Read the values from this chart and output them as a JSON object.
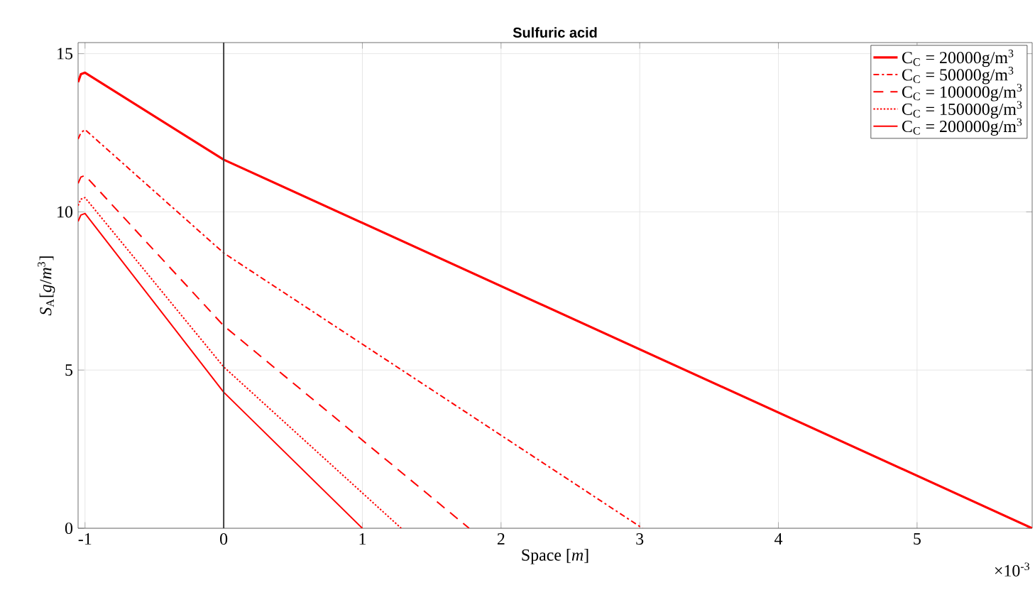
{
  "chart_data": {
    "type": "line",
    "title": "Sulfuric acid",
    "xlabel": "Space [*m*]",
    "ylabel": "*S*$_{A}$[*g*/*m*$^{3}$]",
    "series": [
      {
        "name": "C$_{C}$ = 20000g/m$^{3}$",
        "color": "#ff0000",
        "line_style": "solid",
        "x": [
          -1.05,
          -1.03,
          -1.0,
          0,
          5.83
        ],
        "values": [
          14.1,
          14.35,
          14.4,
          11.65,
          0
        ]
      },
      {
        "name": "C$_{C}$ = 50000g/m$^{3}$",
        "color": "#ff0000",
        "line_style": "dashdot",
        "x": [
          -1.05,
          -1.03,
          -1.0,
          0,
          3.02
        ],
        "values": [
          12.3,
          12.5,
          12.6,
          8.7,
          0
        ]
      },
      {
        "name": "C$_{C}$ = 100000g/m$^{3}$",
        "color": "#ff0000",
        "line_style": "dashed",
        "x": [
          -1.05,
          -1.03,
          -1.0,
          0,
          1.77
        ],
        "values": [
          10.9,
          11.1,
          11.15,
          6.4,
          0
        ]
      },
      {
        "name": "C$_{C}$ = 150000g/m$^{3}$",
        "color": "#ff0000",
        "line_style": "dotted",
        "x": [
          -1.05,
          -1.03,
          -1.0,
          0,
          1.28
        ],
        "values": [
          10.2,
          10.4,
          10.45,
          5.1,
          0
        ]
      },
      {
        "name": "C$_{C}$ = 200000g/m$^{3}$",
        "color": "#ff0000",
        "line_style": "solid",
        "x": [
          -1.05,
          -1.03,
          -1.0,
          0,
          1.0
        ],
        "values": [
          9.7,
          9.9,
          9.95,
          4.3,
          0
        ]
      }
    ],
    "xlim": [
      -1.05,
      5.83
    ],
    "ylim": [
      0,
      15.35
    ],
    "xticks": [
      -1,
      0,
      1,
      2,
      3,
      4,
      5
    ],
    "yticks": [
      0,
      5,
      10,
      15
    ],
    "ref_lines": [
      {
        "axis": "x",
        "value": 0,
        "color": "#404040"
      }
    ],
    "annotations": [
      "×10$^{-3}$"
    ],
    "grid": true,
    "legend": "top right",
    "marker": "none"
  }
}
